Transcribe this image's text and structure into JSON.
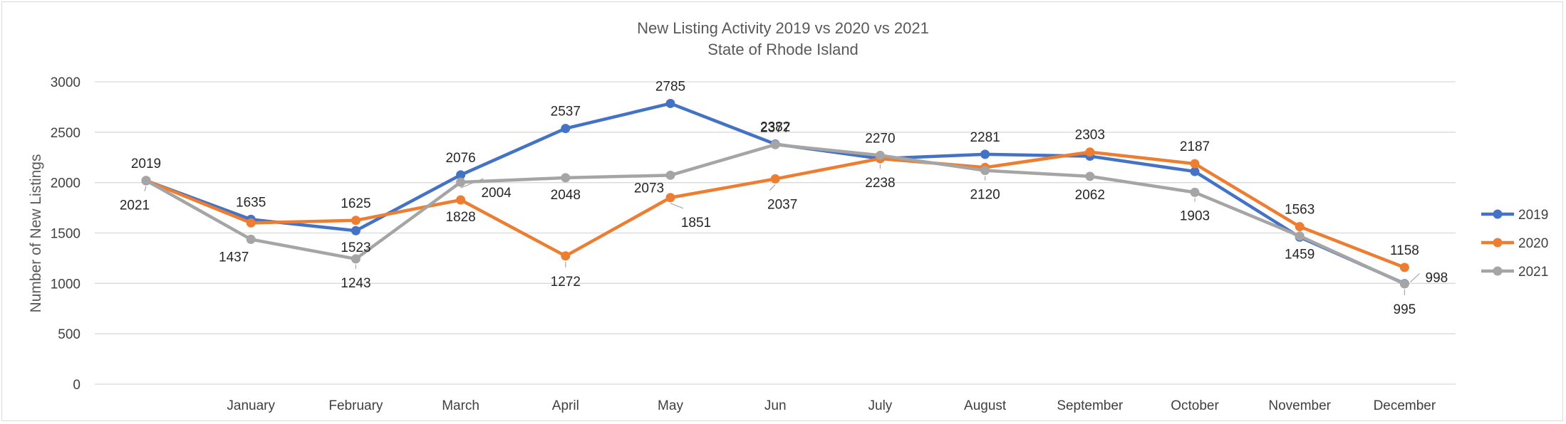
{
  "chart_data": {
    "type": "line",
    "title": "New Listing Activity 2019 vs 2020 vs 2021",
    "subtitle": "State of Rhode Island",
    "xlabel": "",
    "ylabel": "Number of New Listings",
    "ylim": [
      0,
      3000
    ],
    "yticks": [
      "0",
      "500",
      "1000",
      "1500",
      "2000",
      "2500",
      "3000"
    ],
    "categories": [
      "",
      "January",
      "February",
      "March",
      "April",
      "May",
      "Jun",
      "July",
      "August",
      "September",
      "October",
      "November",
      "December"
    ],
    "grid": true,
    "legend_position": "right",
    "series": [
      {
        "name": "2019",
        "color": "#4472C4",
        "values": [
          2019,
          1635,
          1523,
          2076,
          2537,
          2785,
          2382,
          2238,
          2281,
          2262,
          2110,
          1459,
          998
        ],
        "labels": [
          "2019",
          "1635",
          "1523",
          "2076",
          "2537",
          "2785",
          "2382",
          "",
          "2281",
          "",
          "",
          "1459",
          "998"
        ]
      },
      {
        "name": "2020",
        "color": "#ED7D31",
        "values": [
          2021,
          1600,
          1625,
          1828,
          1272,
          1851,
          2037,
          2238,
          2150,
          2303,
          2187,
          1563,
          1158
        ],
        "labels": [
          "2021",
          "",
          "1625",
          "1828",
          "1272",
          "1851",
          "2037",
          "2238",
          "",
          "2303",
          "2187",
          "1563",
          "1158"
        ]
      },
      {
        "name": "2021",
        "color": "#A5A5A5",
        "values": [
          2021,
          1437,
          1243,
          2004,
          2048,
          2073,
          2377,
          2270,
          2120,
          2062,
          1903,
          1470,
          995
        ],
        "labels": [
          "",
          "1437",
          "1243",
          "2004",
          "2048",
          "2073",
          "2377",
          "2270",
          "2120",
          "2062",
          "1903",
          "",
          "995"
        ]
      }
    ]
  }
}
